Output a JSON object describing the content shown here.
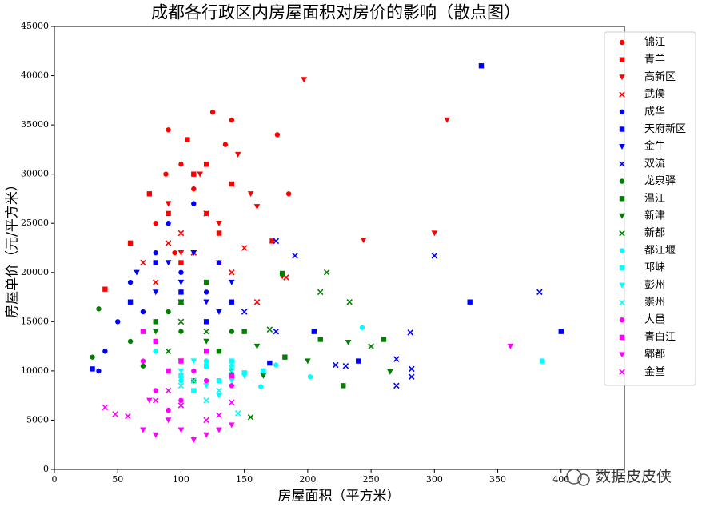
{
  "chart_data": {
    "type": "scatter",
    "title": "成都各行政区内房屋面积对房价的影响（散点图）",
    "xlabel": "房屋面积（平方米）",
    "ylabel": "房屋单价（元/平方米）",
    "watermark": "数据皮皮侠",
    "xlim": [
      0,
      450
    ],
    "ylim": [
      0,
      45000
    ],
    "xticks": [
      0,
      50,
      100,
      150,
      200,
      250,
      300,
      350,
      400
    ],
    "yticks": [
      0,
      5000,
      10000,
      15000,
      20000,
      25000,
      30000,
      35000,
      40000,
      45000
    ],
    "legend": "upper right",
    "grid": false,
    "series": [
      {
        "name": "锦江",
        "color": "#ff0000",
        "marker": "o",
        "x": [
          90,
          125,
          140,
          176,
          185,
          100,
          110,
          80,
          95,
          120,
          135,
          88
        ],
        "values": [
          34500,
          36300,
          35500,
          34000,
          28000,
          31000,
          28500,
          25000,
          22000,
          26000,
          33000,
          30000
        ]
      },
      {
        "name": "青羊",
        "color": "#ff0000",
        "marker": "s",
        "x": [
          105,
          75,
          120,
          140,
          172,
          60,
          90,
          130,
          100,
          40,
          110
        ],
        "values": [
          33500,
          28000,
          31000,
          29000,
          23200,
          23000,
          26000,
          24000,
          21000,
          18300,
          30000
        ]
      },
      {
        "name": "高新区",
        "color": "#ff0000",
        "marker": "v",
        "x": [
          197,
          310,
          300,
          244,
          145,
          155,
          115,
          90,
          130,
          100,
          160,
          180
        ],
        "values": [
          39600,
          35500,
          24000,
          23300,
          32000,
          28000,
          30000,
          27000,
          25000,
          22000,
          26700,
          19600
        ]
      },
      {
        "name": "武侯",
        "color": "#ff0000",
        "marker": "x",
        "x": [
          90,
          110,
          130,
          150,
          120,
          140,
          80,
          100,
          183,
          160,
          70
        ],
        "values": [
          23000,
          22000,
          21000,
          22500,
          26000,
          20000,
          19000,
          24000,
          19500,
          17000,
          21000
        ]
      },
      {
        "name": "成华",
        "color": "#0000ff",
        "marker": "o",
        "x": [
          80,
          100,
          120,
          90,
          60,
          40,
          110,
          70,
          130,
          50,
          35
        ],
        "values": [
          22000,
          20000,
          18000,
          25000,
          19000,
          12000,
          27000,
          16000,
          21000,
          15000,
          10000
        ]
      },
      {
        "name": "天府新区",
        "color": "#0000ff",
        "marker": "s",
        "x": [
          337,
          400,
          328,
          240,
          205,
          170,
          140,
          100,
          80,
          120,
          60,
          30
        ],
        "values": [
          41000,
          14000,
          17000,
          11000,
          14000,
          10800,
          17000,
          18000,
          21000,
          15000,
          17000,
          10200
        ]
      },
      {
        "name": "金牛",
        "color": "#0000ff",
        "marker": "v",
        "x": [
          90,
          100,
          120,
          80,
          110,
          140,
          65,
          130
        ],
        "values": [
          21000,
          19000,
          17000,
          18000,
          22000,
          19000,
          20000,
          16000
        ]
      },
      {
        "name": "双流",
        "color": "#0000ff",
        "marker": "x",
        "x": [
          383,
          300,
          282,
          282,
          270,
          270,
          230,
          222,
          190,
          175,
          175,
          150,
          100,
          281
        ],
        "values": [
          18000,
          21700,
          10200,
          9400,
          8500,
          11200,
          10500,
          10600,
          21700,
          23200,
          14000,
          16000,
          17000,
          13900
        ]
      },
      {
        "name": "龙泉驿",
        "color": "#008000",
        "marker": "o",
        "x": [
          80,
          100,
          120,
          90,
          60,
          35,
          30,
          140,
          110,
          70
        ],
        "values": [
          12000,
          14000,
          11000,
          16000,
          13000,
          16300,
          11400,
          14000,
          9000,
          10500
        ]
      },
      {
        "name": "温江",
        "color": "#008000",
        "marker": "s",
        "x": [
          180,
          260,
          228,
          182,
          210,
          150,
          100,
          120,
          80,
          130
        ],
        "values": [
          19900,
          13200,
          8500,
          11400,
          13200,
          14000,
          17000,
          19000,
          15000,
          12000
        ]
      },
      {
        "name": "新津",
        "color": "#008000",
        "marker": "v",
        "x": [
          232,
          265,
          200,
          165,
          100,
          120,
          80,
          140,
          160
        ],
        "values": [
          12900,
          9900,
          11000,
          9500,
          11000,
          13000,
          14000,
          10000,
          12500
        ]
      },
      {
        "name": "新都",
        "color": "#008000",
        "marker": "x",
        "x": [
          215,
          210,
          233,
          250,
          155,
          140,
          120,
          90,
          100,
          170
        ],
        "values": [
          20000,
          18000,
          17000,
          12500,
          5300,
          10000,
          14000,
          12000,
          15000,
          14200
        ]
      },
      {
        "name": "都江堰",
        "color": "#00ffff",
        "marker": "o",
        "x": [
          243,
          202,
          163,
          175,
          120,
          100,
          80,
          140
        ],
        "values": [
          14400,
          9400,
          8400,
          10600,
          11000,
          9000,
          12000,
          10500
        ]
      },
      {
        "name": "邛崃",
        "color": "#00ffff",
        "marker": "s",
        "x": [
          385,
          165,
          130,
          110,
          140,
          120,
          100,
          150
        ],
        "values": [
          11000,
          10000,
          9000,
          8000,
          11000,
          10500,
          9500,
          9800
        ]
      },
      {
        "name": "彭州",
        "color": "#00ffff",
        "marker": "v",
        "x": [
          140,
          120,
          100,
          130,
          110,
          150
        ],
        "values": [
          9000,
          8500,
          10000,
          7500,
          11000,
          9500
        ]
      },
      {
        "name": "崇州",
        "color": "#00ffff",
        "marker": "x",
        "x": [
          145,
          130,
          110,
          120,
          100,
          140
        ],
        "values": [
          5700,
          8000,
          9000,
          7000,
          8500,
          10000
        ]
      },
      {
        "name": "大邑",
        "color": "#ff00ff",
        "marker": "o",
        "x": [
          80,
          100,
          120,
          90,
          110,
          140,
          70
        ],
        "values": [
          8000,
          7000,
          9000,
          6000,
          10000,
          8500,
          11000
        ]
      },
      {
        "name": "青白江",
        "color": "#ff00ff",
        "marker": "s",
        "x": [
          80,
          100,
          120,
          90,
          140,
          70
        ],
        "values": [
          13000,
          11000,
          12000,
          10000,
          9500,
          14000
        ]
      },
      {
        "name": "郫都",
        "color": "#ff00ff",
        "marker": "v",
        "x": [
          360,
          70,
          80,
          100,
          110,
          130,
          90,
          120,
          75,
          140
        ],
        "values": [
          12500,
          4000,
          3500,
          4000,
          3000,
          4000,
          5000,
          3500,
          7000,
          4500
        ]
      },
      {
        "name": "金堂",
        "color": "#ff00ff",
        "marker": "x",
        "x": [
          40,
          48,
          58,
          80,
          100,
          120,
          140,
          90,
          130
        ],
        "values": [
          6300,
          5600,
          5400,
          7000,
          6500,
          5000,
          6800,
          8000,
          5500
        ]
      }
    ]
  }
}
